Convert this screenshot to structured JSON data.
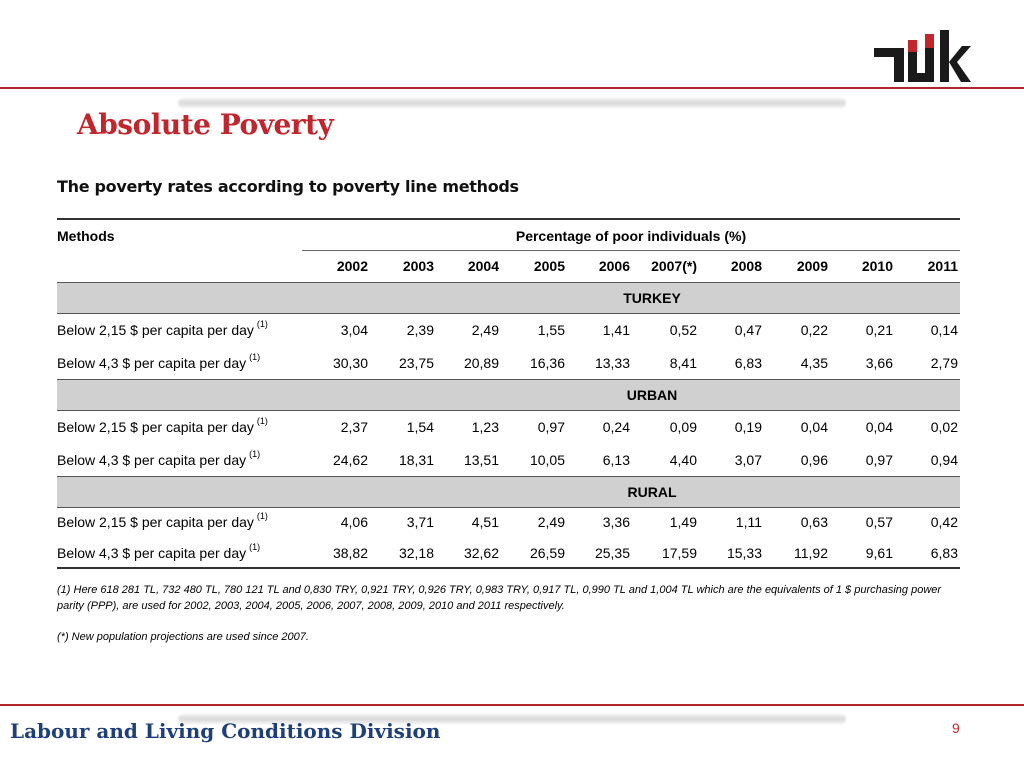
{
  "logo": {
    "text": "TÜİK",
    "accent_color": "#c0262c"
  },
  "title": "Absolute Poverty",
  "subtitle": "The poverty rates according to poverty line methods",
  "table": {
    "methods_header": "Methods",
    "group_header": "Percentage of poor individuals (%)",
    "years": [
      "2002",
      "2003",
      "2004",
      "2005",
      "2006",
      "2007(*)",
      "2008",
      "2009",
      "2010",
      "2011"
    ],
    "sections": [
      {
        "name": "TURKEY",
        "rows": [
          {
            "label": "Below 2,15 $ per capita per day",
            "note": "(1)",
            "values": [
              "3,04",
              "2,39",
              "2,49",
              "1,55",
              "1,41",
              "0,52",
              "0,47",
              "0,22",
              "0,21",
              "0,14"
            ]
          },
          {
            "label": "Below 4,3 $ per capita per day",
            "note": "(1)",
            "values": [
              "30,30",
              "23,75",
              "20,89",
              "16,36",
              "13,33",
              "8,41",
              "6,83",
              "4,35",
              "3,66",
              "2,79"
            ]
          }
        ]
      },
      {
        "name": "URBAN",
        "rows": [
          {
            "label": "Below 2,15 $ per capita per day",
            "note": "(1)",
            "values": [
              "2,37",
              "1,54",
              "1,23",
              "0,97",
              "0,24",
              "0,09",
              "0,19",
              "0,04",
              "0,04",
              "0,02"
            ]
          },
          {
            "label": "Below 4,3 $ per capita per day",
            "note": "(1)",
            "values": [
              "24,62",
              "18,31",
              "13,51",
              "10,05",
              "6,13",
              "4,40",
              "3,07",
              "0,96",
              "0,97",
              "0,94"
            ]
          }
        ]
      },
      {
        "name": "RURAL",
        "rows": [
          {
            "label": "Below 2,15 $ per capita per day",
            "note": "(1)",
            "values": [
              "4,06",
              "3,71",
              "4,51",
              "2,49",
              "3,36",
              "1,49",
              "1,11",
              "0,63",
              "0,57",
              "0,42"
            ]
          },
          {
            "label": "Below 4,3 $ per capita per day",
            "note": "(1)",
            "values": [
              "38,82",
              "32,18",
              "32,62",
              "26,59",
              "25,35",
              "17,59",
              "15,33",
              "11,92",
              "9,61",
              "6,83"
            ]
          }
        ]
      }
    ]
  },
  "footnotes": [
    "(1) Here 618 281 TL, 732 480 TL, 780 121 TL and 0,830 TRY, 0,921 TRY, 0,926 TRY, 0,983 TRY, 0,917 TL, 0,990 TL and 1,004 TL which are the equivalents of 1 $ purchasing power parity (PPP), are used for 2002, 2003, 2004, 2005, 2006, 2007, 2008, 2009, 2010 and 2011 respectively.",
    "(*) New population projections are used since 2007."
  ],
  "footer": {
    "division": "Labour and Living Conditions Division",
    "page_number": "9"
  }
}
